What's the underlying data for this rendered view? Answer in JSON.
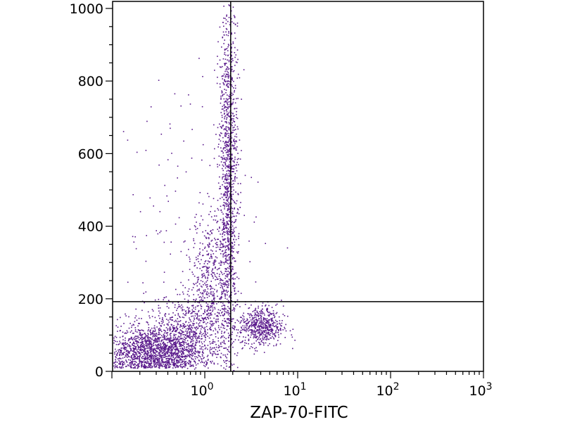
{
  "chart_data": {
    "type": "scatter",
    "title": "",
    "xlabel": "ZAP-70-FITC",
    "ylabel": "",
    "x_scale": "log",
    "x_range": [
      0.1,
      1000
    ],
    "y_range": [
      0,
      1023
    ],
    "x_ticks": [
      {
        "value": 1,
        "base": "10",
        "exp": "0"
      },
      {
        "value": 10,
        "base": "10",
        "exp": "1"
      },
      {
        "value": 100,
        "base": "10",
        "exp": "2"
      },
      {
        "value": 1000,
        "base": "10",
        "exp": "3"
      }
    ],
    "y_ticks": [
      {
        "value": 0,
        "label": "0"
      },
      {
        "value": 200,
        "label": "200"
      },
      {
        "value": 400,
        "label": "400"
      },
      {
        "value": 600,
        "label": "600"
      },
      {
        "value": 800,
        "label": "800"
      },
      {
        "value": 1000,
        "label": "1000"
      }
    ],
    "quadrant_gates": {
      "x": 1.9,
      "y": 192
    },
    "point_color": "#5a1a8c",
    "populations": [
      {
        "description": "dense low cluster",
        "x_log_center": -0.55,
        "y_center": 55,
        "x_log_spread": 0.3,
        "y_spread": 35,
        "count": 1700
      },
      {
        "description": "low cluster tail",
        "x_log_center": -0.2,
        "y_center": 120,
        "x_log_spread": 0.22,
        "y_spread": 45,
        "count": 500
      },
      {
        "description": "vertical stream",
        "x_log_center": 0.25,
        "y_center": 520,
        "x_log_spread": 0.05,
        "y_spread": 260,
        "count": 1300
      },
      {
        "description": "stream base",
        "x_log_center": 0.05,
        "y_center": 260,
        "x_log_spread": 0.1,
        "y_spread": 90,
        "count": 450
      },
      {
        "description": "ZAP-70 positive cluster",
        "x_log_center": 0.6,
        "y_center": 125,
        "x_log_spread": 0.12,
        "y_spread": 28,
        "count": 550
      },
      {
        "description": "sparse background",
        "x_log_center": -0.3,
        "y_center": 350,
        "x_log_spread": 0.45,
        "y_spread": 250,
        "count": 160
      }
    ]
  }
}
